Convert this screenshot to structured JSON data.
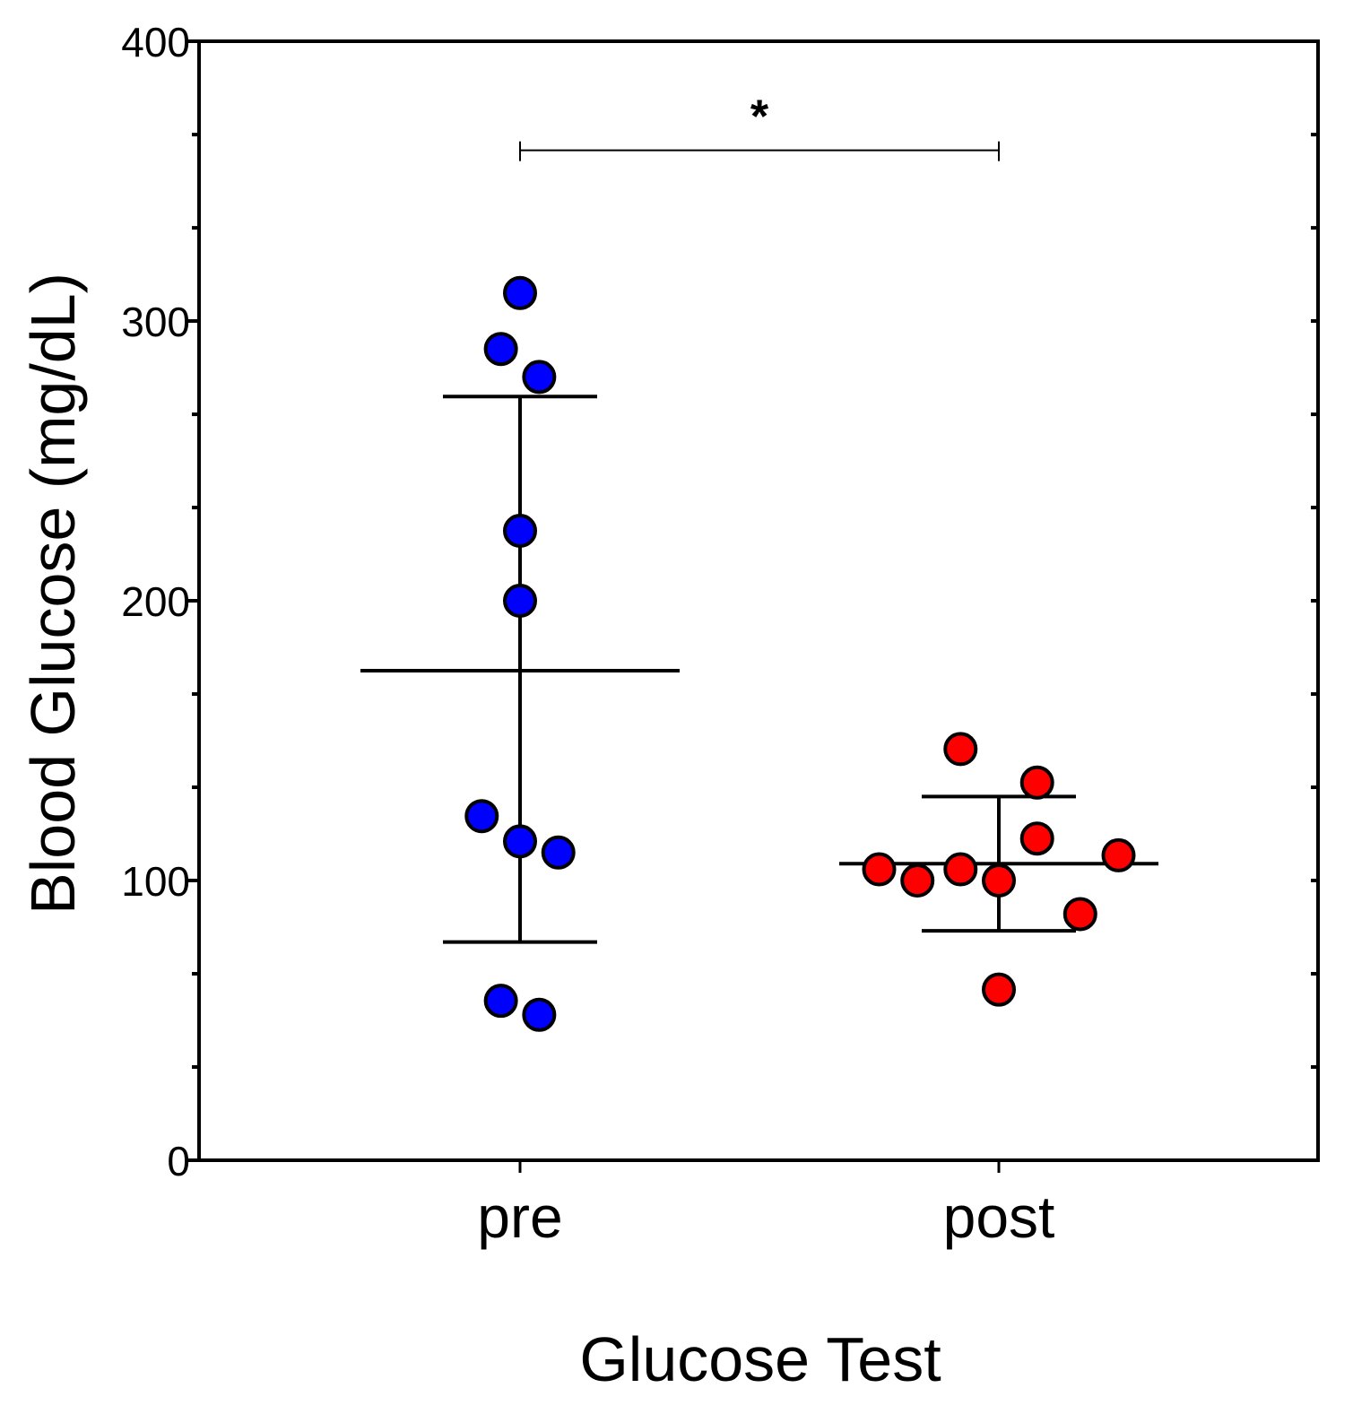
{
  "chart_data": {
    "type": "scatter",
    "xlabel": "Glucose Test",
    "ylabel": "Blood Glucose (mg/dL)",
    "categories": [
      "pre",
      "post"
    ],
    "ylim": [
      0,
      400
    ],
    "yticks": [
      0,
      100,
      200,
      300,
      400
    ],
    "yminor_step": 33.33,
    "grid": false,
    "series": [
      {
        "category": "pre",
        "color": "#0000ff",
        "points": [
          {
            "offset": 0.0,
            "y": 310
          },
          {
            "offset": -0.04,
            "y": 290
          },
          {
            "offset": 0.04,
            "y": 280
          },
          {
            "offset": 0.0,
            "y": 225
          },
          {
            "offset": 0.0,
            "y": 200
          },
          {
            "offset": -0.08,
            "y": 123
          },
          {
            "offset": 0.0,
            "y": 114
          },
          {
            "offset": 0.08,
            "y": 110
          },
          {
            "offset": -0.04,
            "y": 57
          },
          {
            "offset": 0.04,
            "y": 52
          }
        ],
        "mean": 175,
        "sd_upper": 273,
        "sd_lower": 78
      },
      {
        "category": "post",
        "color": "#ff0000",
        "points": [
          {
            "offset": -0.08,
            "y": 147
          },
          {
            "offset": 0.08,
            "y": 135
          },
          {
            "offset": 0.08,
            "y": 115
          },
          {
            "offset": 0.25,
            "y": 109
          },
          {
            "offset": -0.25,
            "y": 104
          },
          {
            "offset": -0.08,
            "y": 104
          },
          {
            "offset": -0.17,
            "y": 100
          },
          {
            "offset": 0.0,
            "y": 100
          },
          {
            "offset": 0.17,
            "y": 88
          },
          {
            "offset": 0.0,
            "y": 61
          }
        ],
        "mean": 106,
        "sd_upper": 130,
        "sd_lower": 82
      }
    ],
    "annotation": {
      "text": "*",
      "from": "pre",
      "to": "post",
      "y": 361
    }
  }
}
